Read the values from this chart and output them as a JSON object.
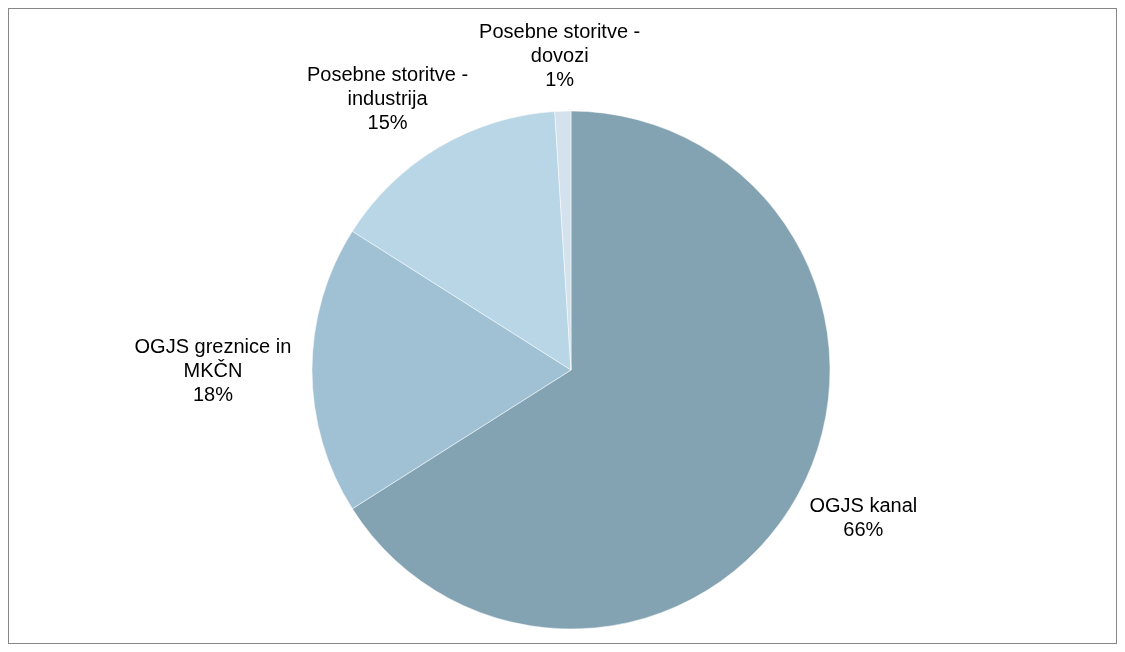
{
  "chart_data": {
    "type": "pie",
    "categories": [
      "OGJS kanal",
      "OGJS greznice in MKČN",
      "Posebne storitve - industrija",
      "Posebne storitve - dovozi"
    ],
    "values": [
      66,
      18,
      15,
      1
    ],
    "value_labels": [
      "66%",
      "18%",
      "15%",
      "1%"
    ],
    "colors": [
      "#84a3b2",
      "#a0c1d4",
      "#b9d6e6",
      "#d3e2ec"
    ]
  }
}
